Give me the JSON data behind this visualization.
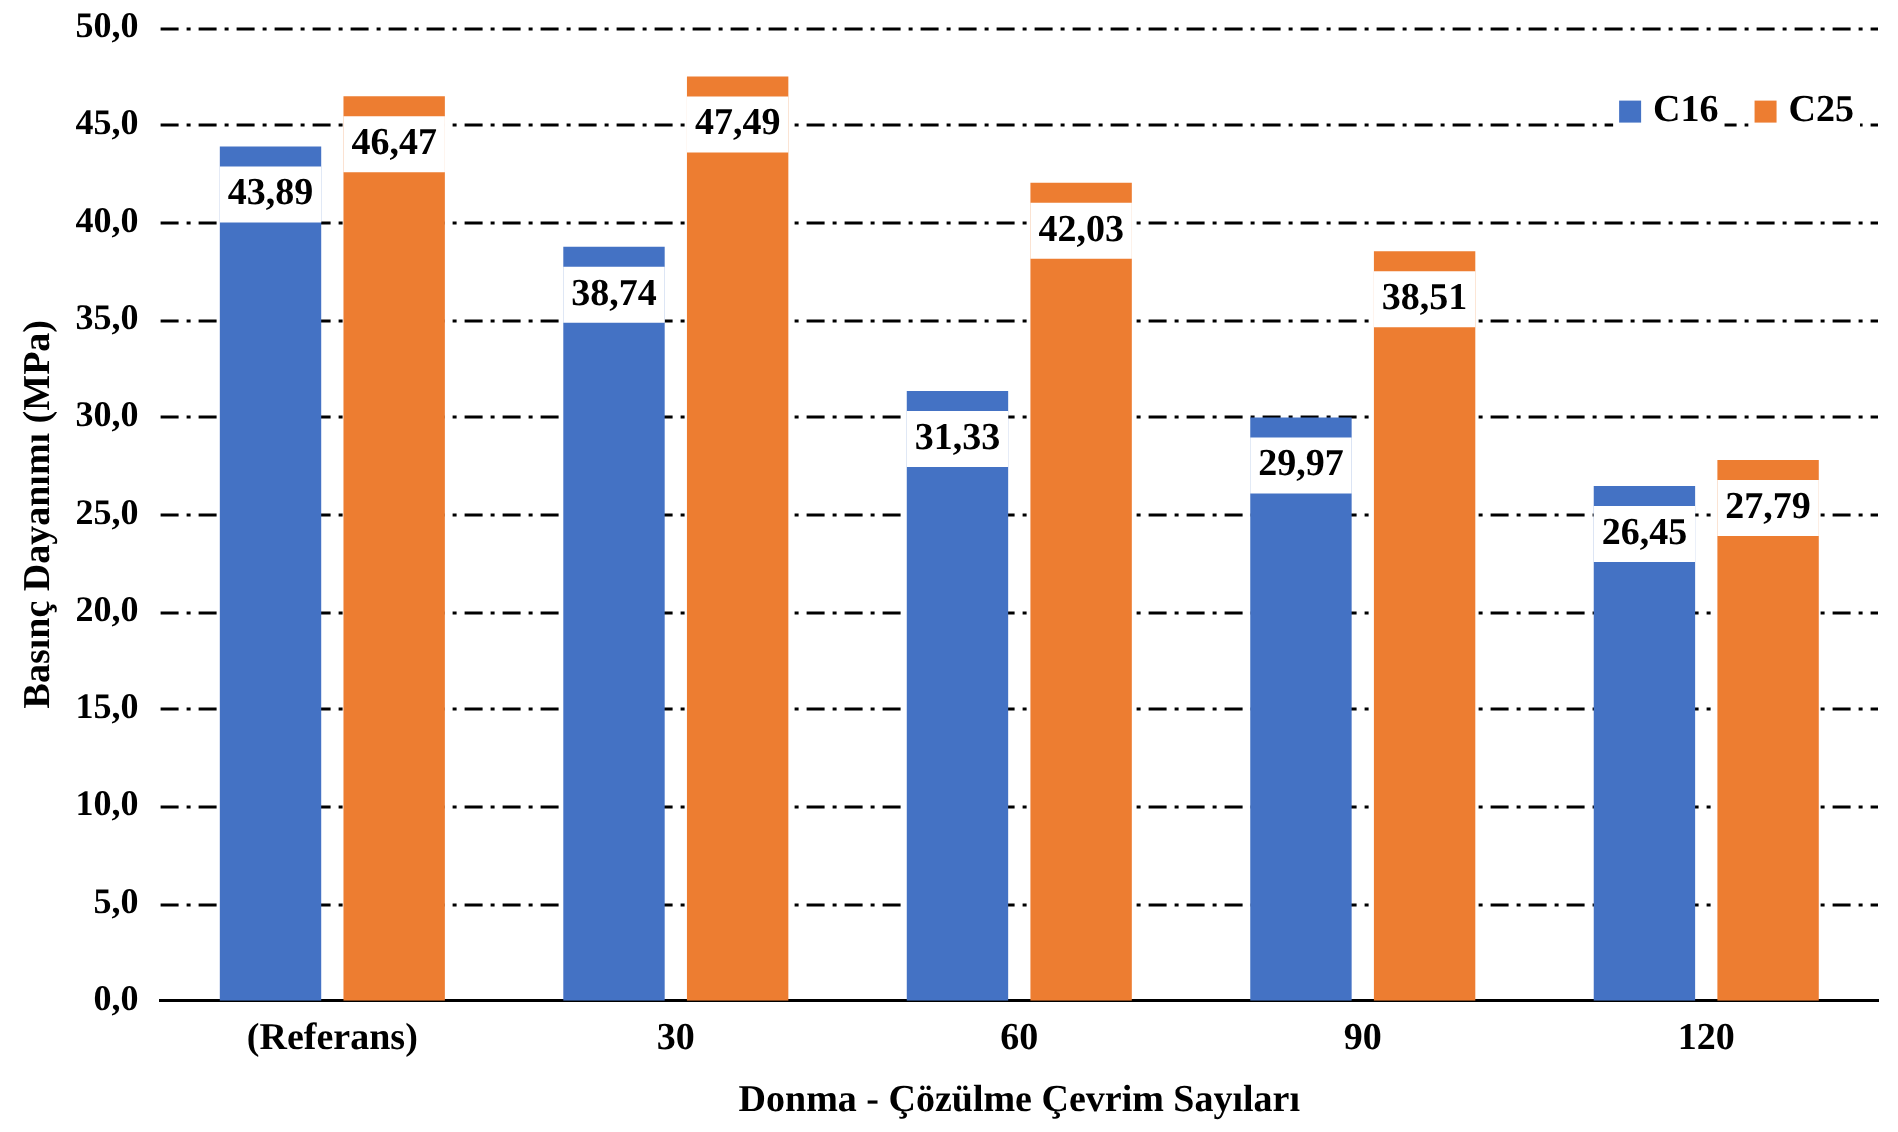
{
  "chart_data": {
    "type": "bar",
    "xlabel": "Donma - Çözülme Çevrim Sayıları",
    "ylabel": "Basınç Dayanımı (MPa)",
    "categories": [
      "(Referans)",
      "30",
      "60",
      "90",
      "120"
    ],
    "series": [
      {
        "name": "C16",
        "color": "#4472c4",
        "values": [
          43.89,
          38.74,
          31.33,
          29.97,
          26.45
        ],
        "value_labels": [
          "43,89",
          "38,74",
          "31,33",
          "29,97",
          "26,45"
        ]
      },
      {
        "name": "C25",
        "color": "#ed7d31",
        "values": [
          46.47,
          47.49,
          42.03,
          38.51,
          27.79
        ],
        "value_labels": [
          "46,47",
          "47,49",
          "42,03",
          "38,51",
          "27,79"
        ]
      }
    ],
    "ylim": [
      0,
      50
    ],
    "yticks": [
      {
        "value": 0,
        "label": "0,0"
      },
      {
        "value": 5,
        "label": "5,0"
      },
      {
        "value": 10,
        "label": "10,0"
      },
      {
        "value": 15,
        "label": "15,0"
      },
      {
        "value": 20,
        "label": "20,0"
      },
      {
        "value": 25,
        "label": "25,0"
      },
      {
        "value": 30,
        "label": "30,0"
      },
      {
        "value": 35,
        "label": "35,0"
      },
      {
        "value": 40,
        "label": "40,0"
      },
      {
        "value": 45,
        "label": "45,0"
      },
      {
        "value": 50,
        "label": "50,0"
      }
    ],
    "grid": "y",
    "legend": "top right"
  }
}
